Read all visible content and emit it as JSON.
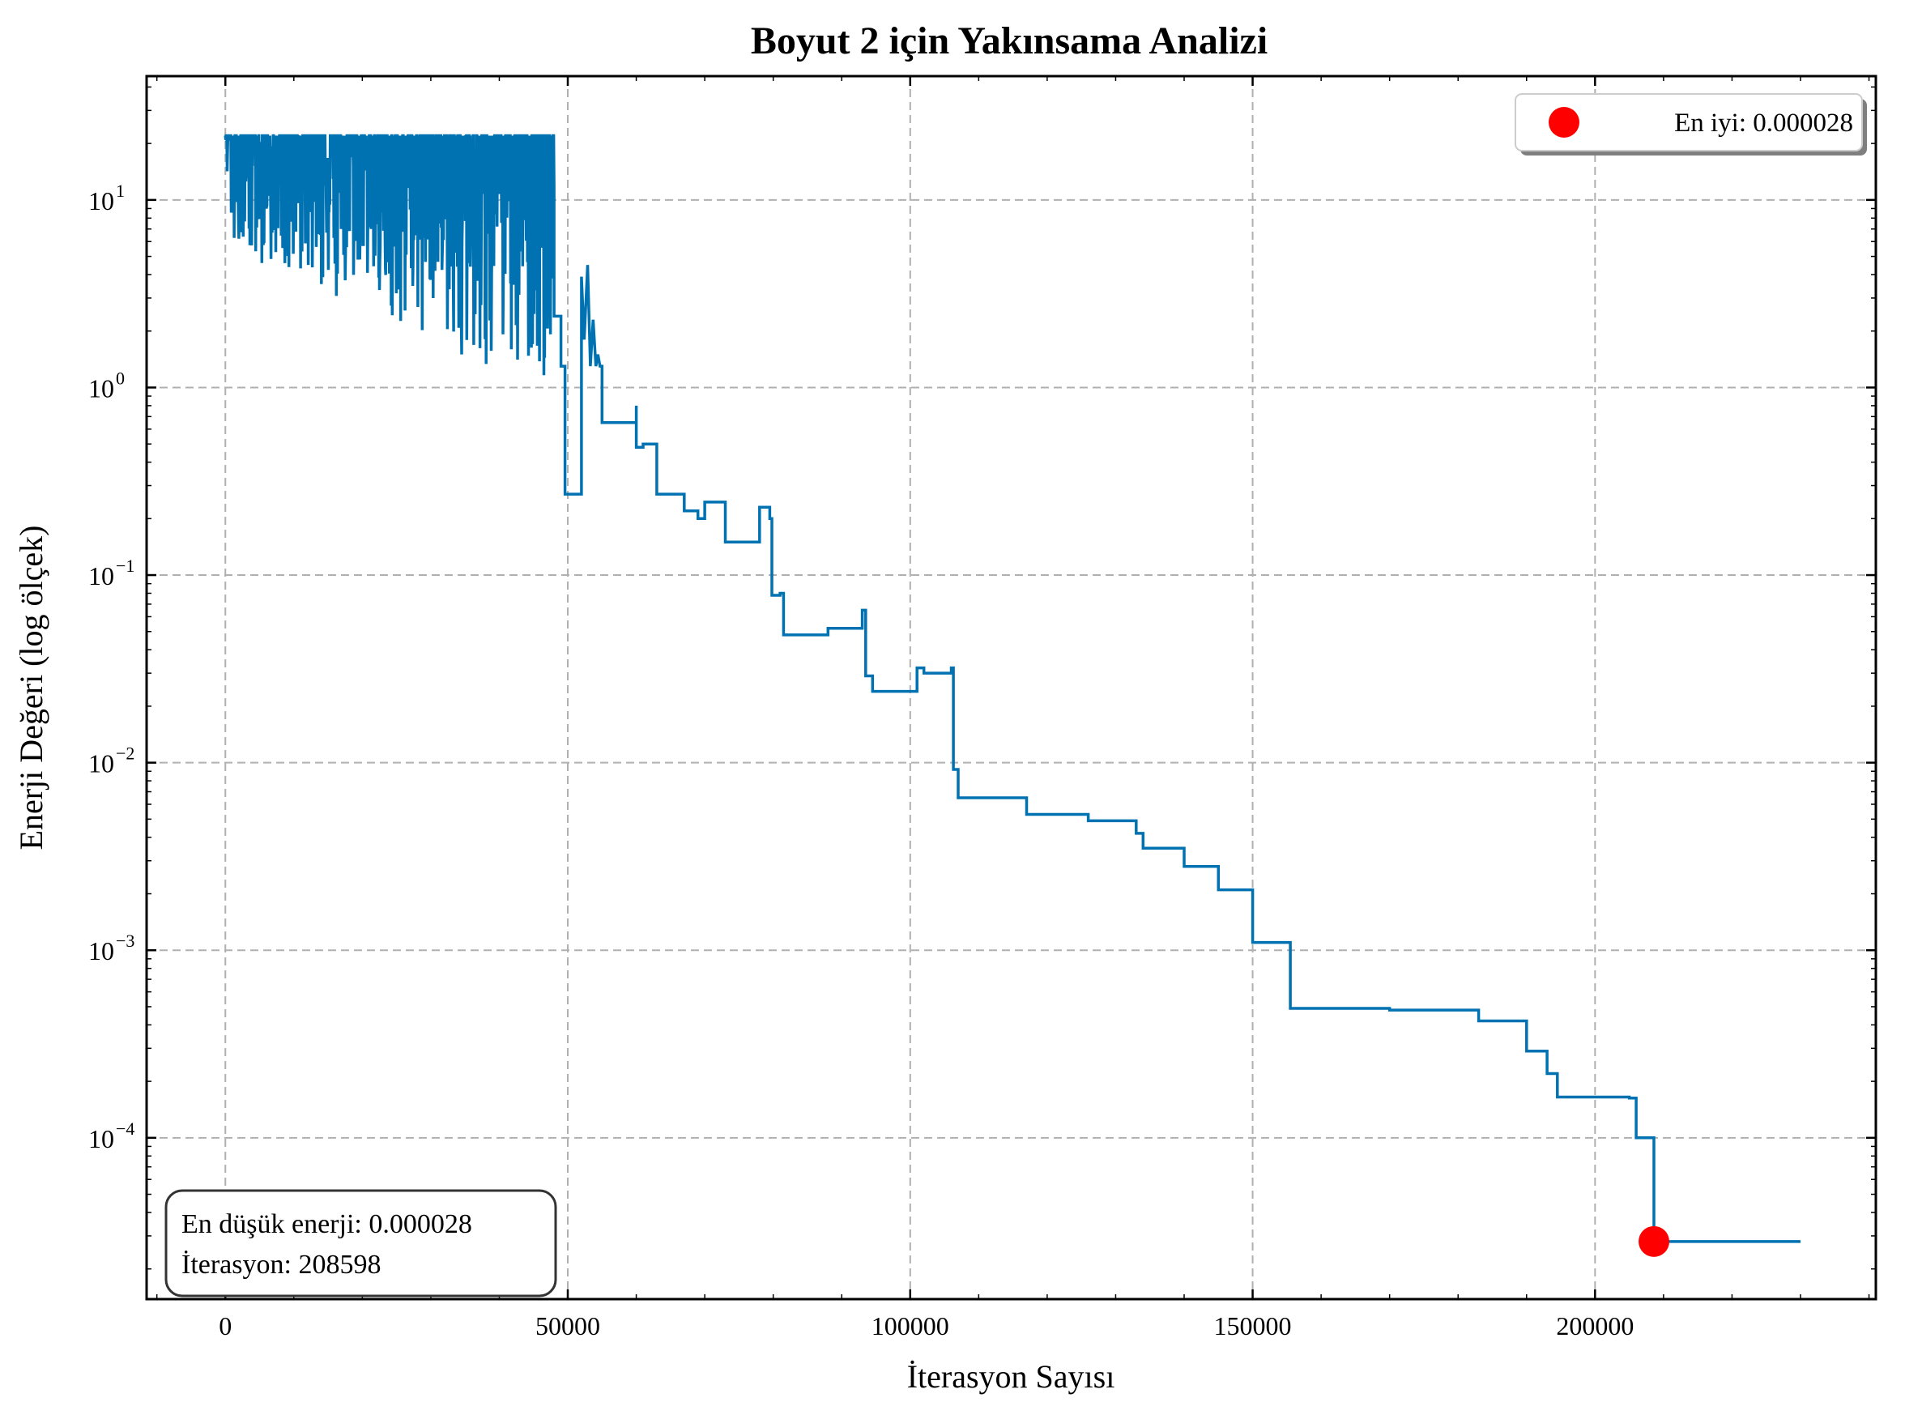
{
  "chart_data": {
    "type": "line",
    "title": "Boyut 2 için Yakınsama Analizi",
    "xlabel": "İterasyon Sayısı",
    "ylabel": "Enerji Değeri (log ölçek)",
    "yscale": "log",
    "xlim": [
      -11500,
      241000
    ],
    "ylim_log10": [
      -4.86,
      1.66
    ],
    "xticks": [
      0,
      50000,
      100000,
      150000,
      200000
    ],
    "xtick_labels": [
      "0",
      "50000",
      "100000",
      "150000",
      "200000"
    ],
    "ytick_exponents": [
      1,
      0,
      -1,
      -2,
      -3,
      -4
    ],
    "ytick_base": "10",
    "ytick_exponent_labels": [
      "1",
      "0",
      "−1",
      "−2",
      "−3",
      "−4"
    ],
    "grid": true,
    "colors": {
      "line": "#0072B2",
      "best": "#FF0000"
    },
    "series": [
      {
        "name": "Enerji",
        "noisy_phase": {
          "x_start": 0,
          "x_end": 48000,
          "max": 22,
          "min_start": 5.5,
          "min_end": 0.9
        },
        "step_points": [
          [
            48000,
            2.4
          ],
          [
            49000,
            2.4
          ],
          [
            49000,
            1.3
          ],
          [
            49600,
            1.3
          ],
          [
            49600,
            0.27
          ],
          [
            52000,
            0.27
          ],
          [
            52000,
            3.9
          ],
          [
            52400,
            1.8
          ],
          [
            52900,
            4.5
          ],
          [
            53300,
            1.3
          ],
          [
            53700,
            2.3
          ],
          [
            54100,
            1.3
          ],
          [
            54400,
            1.5
          ],
          [
            54700,
            1.3
          ],
          [
            55000,
            1.3
          ],
          [
            55000,
            0.65
          ],
          [
            60000,
            0.65
          ],
          [
            60000,
            0.8
          ],
          [
            60000,
            0.48
          ],
          [
            61000,
            0.48
          ],
          [
            61000,
            0.5
          ],
          [
            63000,
            0.5
          ],
          [
            63000,
            0.27
          ],
          [
            67000,
            0.27
          ],
          [
            67000,
            0.22
          ],
          [
            69000,
            0.22
          ],
          [
            69000,
            0.2
          ],
          [
            70000,
            0.2
          ],
          [
            70000,
            0.245
          ],
          [
            73000,
            0.245
          ],
          [
            73000,
            0.15
          ],
          [
            78000,
            0.15
          ],
          [
            78000,
            0.23
          ],
          [
            79500,
            0.23
          ],
          [
            79500,
            0.2
          ],
          [
            79800,
            0.2
          ],
          [
            79800,
            0.078
          ],
          [
            81000,
            0.078
          ],
          [
            81000,
            0.08
          ],
          [
            81500,
            0.08
          ],
          [
            81500,
            0.048
          ],
          [
            88000,
            0.048
          ],
          [
            88000,
            0.052
          ],
          [
            93000,
            0.052
          ],
          [
            93000,
            0.065
          ],
          [
            93500,
            0.065
          ],
          [
            93500,
            0.029
          ],
          [
            94500,
            0.029
          ],
          [
            94500,
            0.024
          ],
          [
            101000,
            0.024
          ],
          [
            101000,
            0.032
          ],
          [
            102000,
            0.032
          ],
          [
            102000,
            0.03
          ],
          [
            106000,
            0.03
          ],
          [
            106000,
            0.032
          ],
          [
            106300,
            0.032
          ],
          [
            106300,
            0.0092
          ],
          [
            107000,
            0.0092
          ],
          [
            107000,
            0.0065
          ],
          [
            117000,
            0.0065
          ],
          [
            117000,
            0.0053
          ],
          [
            126000,
            0.0053
          ],
          [
            126000,
            0.0049
          ],
          [
            133000,
            0.0049
          ],
          [
            133000,
            0.0042
          ],
          [
            134000,
            0.0042
          ],
          [
            134000,
            0.0035
          ],
          [
            140000,
            0.0035
          ],
          [
            140000,
            0.0028
          ],
          [
            145000,
            0.0028
          ],
          [
            145000,
            0.0021
          ],
          [
            150000,
            0.0021
          ],
          [
            150000,
            0.0011
          ],
          [
            155500,
            0.0011
          ],
          [
            155500,
            0.00049
          ],
          [
            170000,
            0.00049
          ],
          [
            170000,
            0.00048
          ],
          [
            183000,
            0.00048
          ],
          [
            183000,
            0.00042
          ],
          [
            190000,
            0.00042
          ],
          [
            190000,
            0.00029
          ],
          [
            193000,
            0.00029
          ],
          [
            193000,
            0.00022
          ],
          [
            194500,
            0.00022
          ],
          [
            194500,
            0.000165
          ],
          [
            205000,
            0.000165
          ],
          [
            205000,
            0.000163
          ],
          [
            206000,
            0.000163
          ],
          [
            206000,
            0.0001
          ],
          [
            208598,
            0.0001
          ],
          [
            208598,
            2.8e-05
          ],
          [
            230000,
            2.8e-05
          ]
        ]
      }
    ],
    "best_point": {
      "x": 208598,
      "y": 2.8e-05
    },
    "legend": {
      "label": "En iyi: 0.000028",
      "placement": "top-right"
    },
    "annotation": {
      "line1": "En düşük enerji: 0.000028",
      "line2": "İterasyon: 208598",
      "placement": "bottom-left"
    }
  }
}
